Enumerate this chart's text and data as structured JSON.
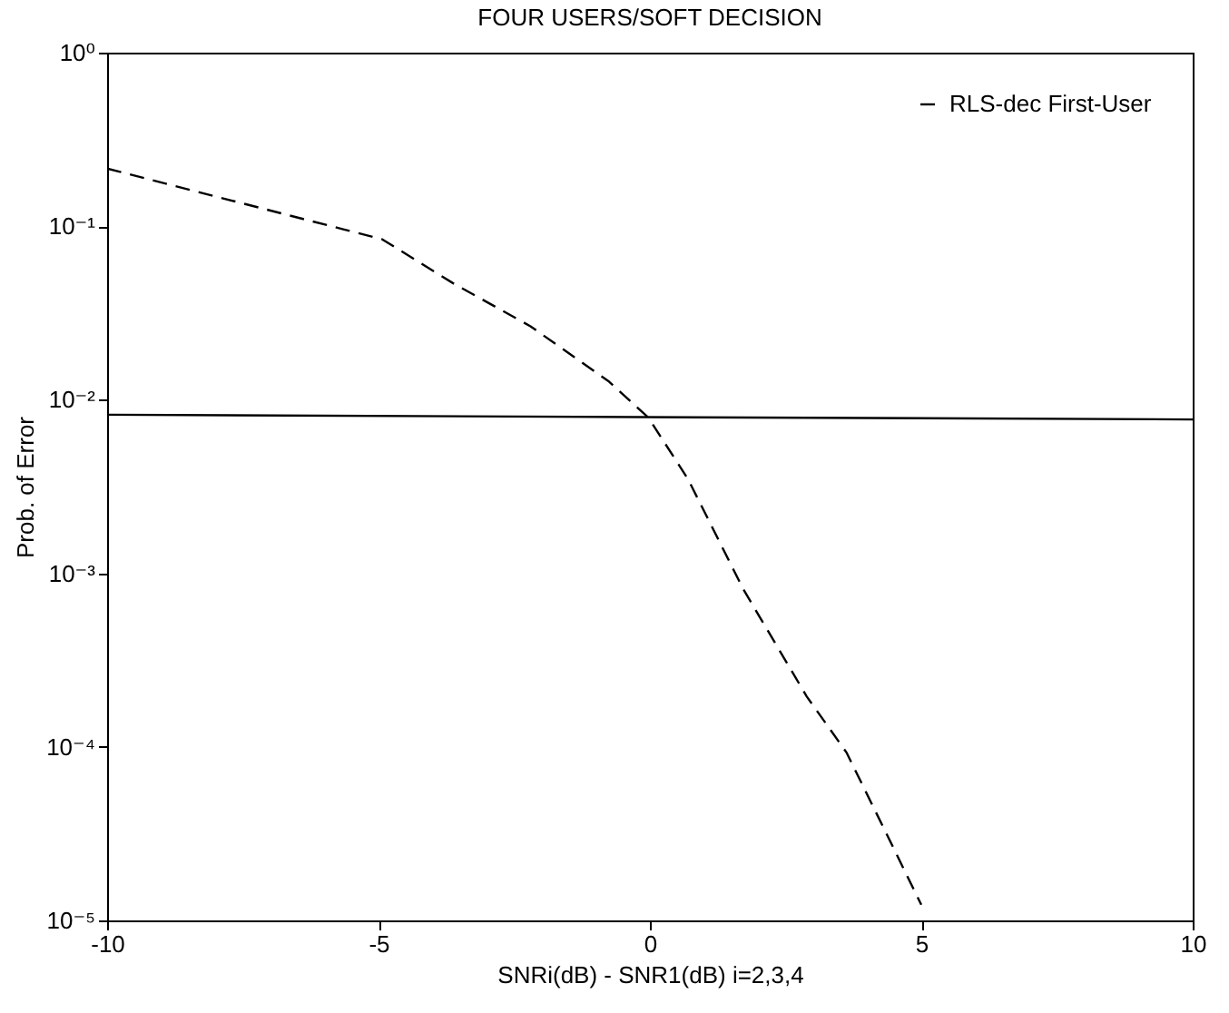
{
  "chart_data": {
    "type": "line",
    "title": "FOUR USERS/SOFT DECISION",
    "xlabel": "SNRi(dB) - SNR1(dB)  i=2,3,4",
    "ylabel": "Prob. of Error",
    "log": "y",
    "xlim": [
      -10,
      10
    ],
    "xticks": [
      -10,
      -5,
      0,
      5,
      10
    ],
    "ylim": [
      1e-05,
      1
    ],
    "yticks": [
      {
        "value": 1e-05,
        "label": "10⁻⁵"
      },
      {
        "value": 0.0001,
        "label": "10⁻⁴"
      },
      {
        "value": 0.001,
        "label": "10⁻³"
      },
      {
        "value": 0.01,
        "label": "10⁻²"
      },
      {
        "value": 0.1,
        "label": "10⁻¹"
      },
      {
        "value": 1,
        "label": "10⁰"
      }
    ],
    "legend": "top right",
    "grid": false,
    "marker": "none",
    "series": [
      {
        "name": "RLS-dec First-User",
        "color": "#000000",
        "line_style": "dashed",
        "x": [
          -10,
          -5.65,
          -4.93,
          -3.63,
          -2.2,
          -0.75,
          -0.03,
          0.7,
          1.72,
          2.89,
          3.62,
          4.35,
          5.0
        ],
        "values": [
          0.215,
          0.096,
          0.084,
          0.047,
          0.0265,
          0.0127,
          0.0079,
          0.0035,
          0.00081,
          0.000195,
          9.3e-05,
          3.2e-05,
          1.23e-05
        ]
      },
      {
        "color": "#000000",
        "line_style": "solid",
        "x": [
          -10,
          10
        ],
        "values": [
          0.0082,
          0.0077
        ]
      }
    ]
  }
}
